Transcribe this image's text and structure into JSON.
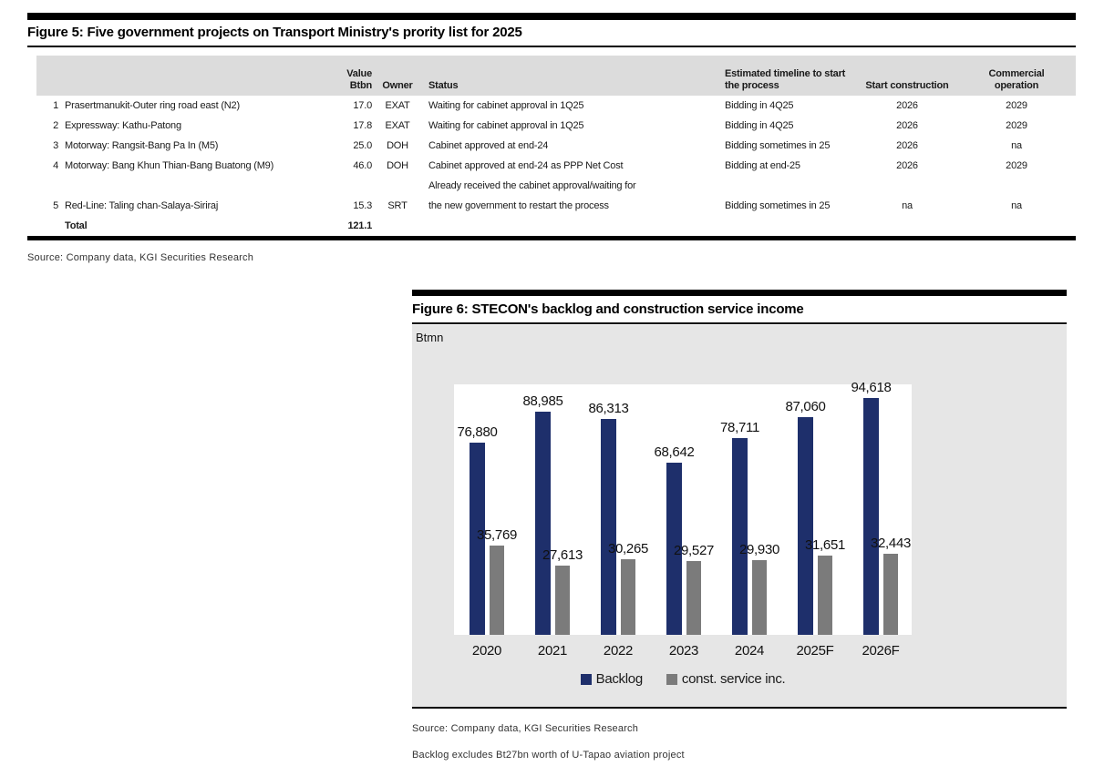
{
  "figure5": {
    "title": "Figure 5: Five government projects on Transport Ministry's prority list for 2025",
    "header": {
      "value_l1": "Value",
      "value_l2": "Btbn",
      "owner": "Owner",
      "status": "Status",
      "timeline_l1": "Estimated timeline to start",
      "timeline_l2": "the process",
      "start": "Start construction",
      "commercial_l1": "Commercial",
      "commercial_l2": "operation"
    },
    "rows": [
      {
        "cells": [
          "1",
          "Prasertmanukit-Outer ring road east (N2)",
          "17.0",
          "EXAT",
          "Waiting for cabinet approval in 1Q25",
          "Bidding in 4Q25",
          "2026",
          "2029"
        ],
        "bold": false
      },
      {
        "cells": [
          "2",
          "Expressway: Kathu-Patong",
          "17.8",
          "EXAT",
          "Waiting for cabinet approval in 1Q25",
          "Bidding in 4Q25",
          "2026",
          "2029"
        ],
        "bold": false
      },
      {
        "cells": [
          "3",
          "Motorway: Rangsit-Bang Pa In (M5)",
          "25.0",
          "DOH",
          "Cabinet approved at end-24",
          "Bidding sometimes in 25",
          "2026",
          "na"
        ],
        "bold": false
      },
      {
        "cells": [
          "4",
          "Motorway: Bang Khun Thian-Bang Buatong (M9)",
          "46.0",
          "DOH",
          "Cabinet approved at end-24 as PPP Net Cost",
          "Bidding at end-25",
          "2026",
          "2029"
        ],
        "bold": false
      },
      {
        "cells": [
          "",
          "",
          "",
          "",
          "Already received the cabinet approval/waiting for",
          "",
          "",
          ""
        ],
        "bold": false
      },
      {
        "cells": [
          "5",
          "Red-Line: Taling chan-Salaya-Siriraj",
          "15.3",
          "SRT",
          "the new government to restart the process",
          "Bidding sometimes in 25",
          "na",
          "na"
        ],
        "bold": false
      },
      {
        "cells": [
          "",
          "Total",
          "121.1",
          "",
          "",
          "",
          "",
          ""
        ],
        "bold": true
      }
    ],
    "source": "Source: Company data, KGI Securities Research"
  },
  "figure6": {
    "title": "Figure 6: STECON's backlog and construction service income",
    "unit_label": "Btmn",
    "source": "Source: Company data, KGI Securities Research",
    "note": "Backlog excludes Bt27bn worth of U-Tapao aviation project",
    "colors": {
      "backlog": "#1e2f6b",
      "service": "#7b7b7b",
      "panel_bg": "#e6e6e6"
    }
  },
  "chart_data": {
    "type": "bar",
    "title": "STECON's backlog and construction service income",
    "ylabel": "Btmn",
    "xlabel": "",
    "categories": [
      "2020",
      "2021",
      "2022",
      "2023",
      "2024",
      "2025F",
      "2026F"
    ],
    "series": [
      {
        "name": "Backlog",
        "color": "#1e2f6b",
        "values": [
          76880,
          88985,
          86313,
          68642,
          78711,
          87060,
          94618
        ]
      },
      {
        "name": "const. service inc.",
        "color": "#7b7b7b",
        "values": [
          35769,
          27613,
          30265,
          29527,
          29930,
          31651,
          32443
        ]
      }
    ],
    "ylim": [
      0,
      100000
    ],
    "grid": false,
    "legend_position": "bottom",
    "value_labels": true
  }
}
